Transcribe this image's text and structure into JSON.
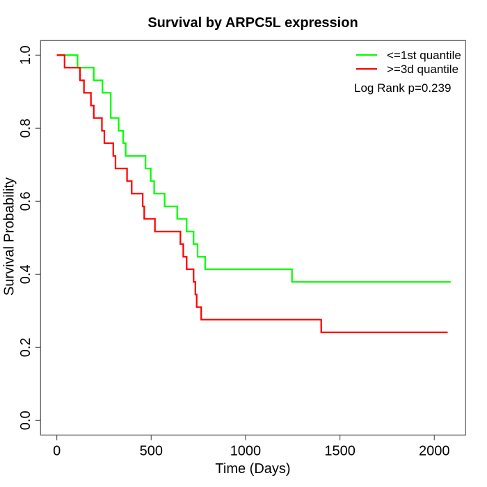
{
  "chart_data": {
    "type": "line",
    "variant": "kaplan_meier_step",
    "title": "Survival by ARPC5L expression",
    "xlabel": "Time (Days)",
    "ylabel": "Survival Probability",
    "xlim": [
      -86,
      2166
    ],
    "ylim": [
      -0.04,
      1.04
    ],
    "grid": false,
    "frame_color": "#595959",
    "text_color": "#000000",
    "background_color": "#ffffff",
    "xticks": {
      "values": [
        0,
        500,
        1000,
        1500,
        2000
      ],
      "labels": [
        "0",
        "500",
        "1000",
        "1500",
        "2000"
      ]
    },
    "yticks": {
      "values": [
        0.0,
        0.2,
        0.4,
        0.6,
        0.8,
        1.0
      ],
      "labels": [
        "0.0",
        "0.2",
        "0.4",
        "0.6",
        "0.8",
        "1.0"
      ]
    },
    "series": [
      {
        "name": "<=1st quantile",
        "color": "#00ff00",
        "end_time": 2087,
        "points": [
          [
            0,
            1.0
          ],
          [
            110,
            0.966
          ],
          [
            196,
            0.931
          ],
          [
            242,
            0.897
          ],
          [
            286,
            0.828
          ],
          [
            328,
            0.793
          ],
          [
            352,
            0.759
          ],
          [
            365,
            0.724
          ],
          [
            470,
            0.69
          ],
          [
            498,
            0.655
          ],
          [
            516,
            0.621
          ],
          [
            571,
            0.586
          ],
          [
            638,
            0.552
          ],
          [
            688,
            0.517
          ],
          [
            725,
            0.483
          ],
          [
            746,
            0.448
          ],
          [
            786,
            0.414
          ],
          [
            1246,
            0.379
          ]
        ]
      },
      {
        "name": ">=3d quantile",
        "color": "#ff0000",
        "end_time": 2071,
        "points": [
          [
            0,
            1.0
          ],
          [
            41,
            0.966
          ],
          [
            123,
            0.931
          ],
          [
            144,
            0.897
          ],
          [
            181,
            0.862
          ],
          [
            196,
            0.828
          ],
          [
            239,
            0.793
          ],
          [
            252,
            0.759
          ],
          [
            299,
            0.724
          ],
          [
            311,
            0.69
          ],
          [
            372,
            0.655
          ],
          [
            397,
            0.621
          ],
          [
            455,
            0.586
          ],
          [
            463,
            0.552
          ],
          [
            520,
            0.517
          ],
          [
            655,
            0.483
          ],
          [
            670,
            0.448
          ],
          [
            688,
            0.414
          ],
          [
            725,
            0.379
          ],
          [
            734,
            0.345
          ],
          [
            741,
            0.31
          ],
          [
            765,
            0.276
          ],
          [
            1401,
            0.241
          ]
        ]
      }
    ],
    "legend": {
      "position": "top-right",
      "items": [
        {
          "label": "<=1st quantile",
          "color": "#00ff00"
        },
        {
          "label": ">=3d quantile",
          "color": "#ff0000"
        }
      ],
      "annotation": "Log Rank p=0.239"
    }
  }
}
